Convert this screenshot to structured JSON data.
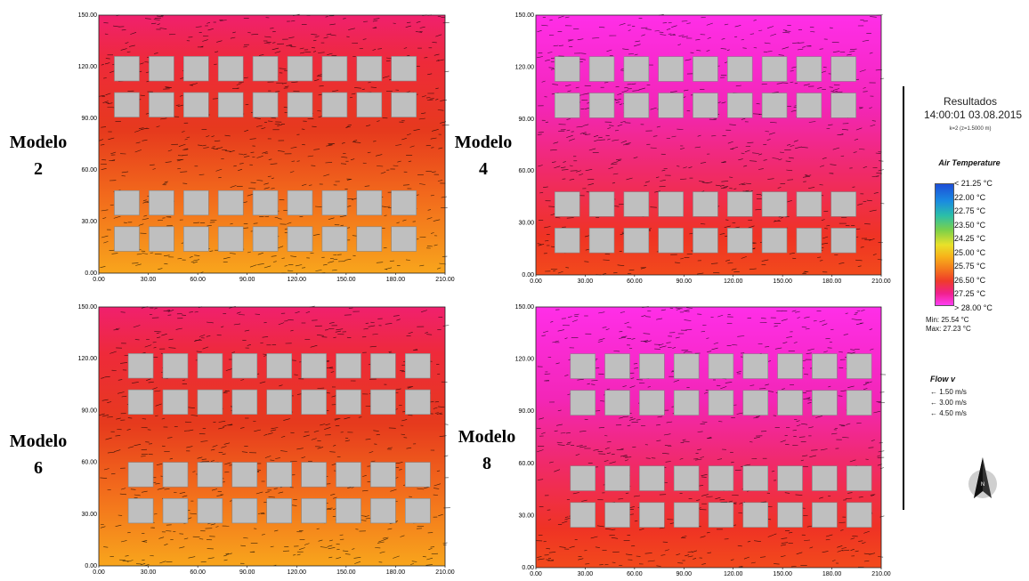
{
  "models": [
    {
      "id": "m2",
      "label_word": "Modelo",
      "label_num": "2",
      "variant": "red"
    },
    {
      "id": "m4",
      "label_word": "Modelo",
      "label_num": "4",
      "variant": "pink"
    },
    {
      "id": "m6",
      "label_word": "Modelo",
      "label_num": "6",
      "variant": "red"
    },
    {
      "id": "m8",
      "label_word": "Modelo",
      "label_num": "8",
      "variant": "pink"
    }
  ],
  "axes": {
    "x_ticks": [
      "0.00",
      "30.00",
      "60.00",
      "90.00",
      "120.00",
      "150.00",
      "180.00",
      "210.00"
    ],
    "y_ticks": [
      "0.00",
      "30.00",
      "60.00",
      "90.00",
      "120.00",
      "150.00"
    ]
  },
  "legend": {
    "title": "Resultados",
    "datetime": "14:00:01 03.08.2015",
    "subtitle": "k=2 (z=1.5000 m)",
    "variable": "Air Temperature",
    "scale": [
      "< 21.25 °C",
      "22.00 °C",
      "22.75 °C",
      "23.50 °C",
      "24.25 °C",
      "25.00 °C",
      "25.75 °C",
      "26.50 °C",
      "27.25 °C",
      "> 28.00 °C"
    ],
    "min": "Min: 25.54 °C",
    "max": "Max: 27.23 °C",
    "flow_title": "Flow v",
    "flow_items": [
      "1.50 m/s",
      "3.00 m/s",
      "4.50 m/s"
    ],
    "colors": {
      "low": "#1d4ed8",
      "high": "#ff3df2",
      "building": "#bfbfbf"
    }
  }
}
